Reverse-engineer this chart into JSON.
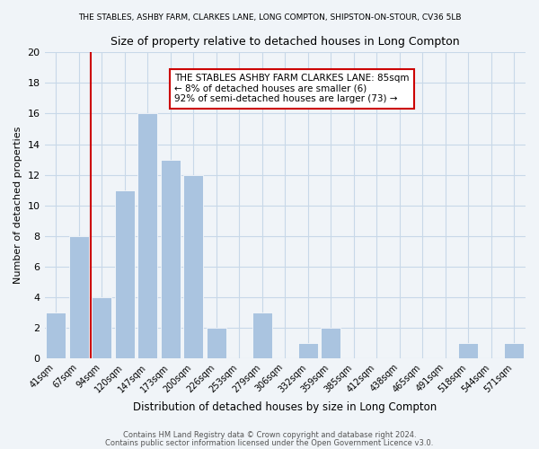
{
  "title_top": "THE STABLES, ASHBY FARM, CLARKES LANE, LONG COMPTON, SHIPSTON-ON-STOUR, CV36 5LB",
  "title_main": "Size of property relative to detached houses in Long Compton",
  "xlabel": "Distribution of detached houses by size in Long Compton",
  "ylabel": "Number of detached properties",
  "bar_labels": [
    "41sqm",
    "67sqm",
    "94sqm",
    "120sqm",
    "147sqm",
    "173sqm",
    "200sqm",
    "226sqm",
    "253sqm",
    "279sqm",
    "306sqm",
    "332sqm",
    "359sqm",
    "385sqm",
    "412sqm",
    "438sqm",
    "465sqm",
    "491sqm",
    "518sqm",
    "544sqm",
    "571sqm"
  ],
  "bar_values": [
    3,
    8,
    4,
    11,
    16,
    13,
    12,
    2,
    0,
    3,
    0,
    1,
    2,
    0,
    0,
    0,
    0,
    0,
    1,
    0,
    1
  ],
  "bar_color": "#aac4e0",
  "grid_color": "#c8d8e8",
  "background_color": "#f0f4f8",
  "vline_x": 1.5,
  "vline_color": "#cc0000",
  "ylim": [
    0,
    20
  ],
  "yticks": [
    0,
    2,
    4,
    6,
    8,
    10,
    12,
    14,
    16,
    18,
    20
  ],
  "annotation_title": "THE STABLES ASHBY FARM CLARKES LANE: 85sqm",
  "annotation_line2": "← 8% of detached houses are smaller (6)",
  "annotation_line3": "92% of semi-detached houses are larger (73) →",
  "footer1": "Contains HM Land Registry data © Crown copyright and database right 2024.",
  "footer2": "Contains public sector information licensed under the Open Government Licence v3.0."
}
